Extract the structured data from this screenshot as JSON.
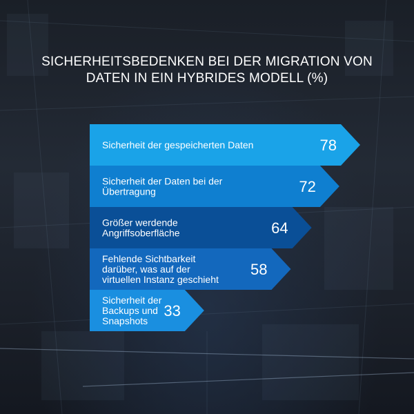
{
  "chart_data": {
    "type": "bar",
    "orientation": "horizontal",
    "title": "SICHERHEITSBEDENKEN BEI DER MIGRATION VON DATEN IN EIN HYBRIDES MODELL (%)",
    "categories": [
      "Sicherheit der gespeicherten Daten",
      "Sicherheit der Daten bei der Übertragung",
      "Größer werdende Angriffsoberfläche",
      "Fehlende Sichtbarkeit darüber, was auf der virtuellen Instanz geschieht",
      "Sicherheit der Backups und Snapshots"
    ],
    "label_lines": [
      [
        "Sicherheit der gespeicherten Daten"
      ],
      [
        "Sicherheit der Daten bei der",
        "Übertragung"
      ],
      [
        "Größer werdende",
        "Angriffsoberfläche"
      ],
      [
        "Fehlende Sichtbarkeit",
        "darüber, was auf der",
        "virtuellen Instanz geschieht"
      ],
      [
        "Sicherheit der",
        "Backups und",
        "Snapshots"
      ]
    ],
    "values": [
      78,
      72,
      64,
      58,
      33
    ],
    "value_labels": [
      "78",
      "72",
      "64",
      "58",
      "33"
    ],
    "colors": [
      "#1aa3e8",
      "#0f7fd0",
      "#0a4f97",
      "#1368bd",
      "#1a8fe0"
    ],
    "xlim": [
      0,
      78
    ],
    "grid": false,
    "legend": "none"
  }
}
